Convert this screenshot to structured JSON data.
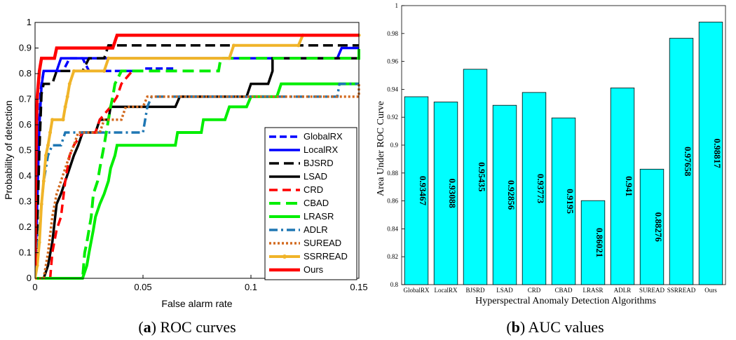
{
  "captions": {
    "a_letter": "a",
    "a_text": "ROC curves",
    "b_letter": "b",
    "b_text": "AUC values"
  },
  "chart_data": [
    {
      "type": "line",
      "xlabel": "False alarm rate",
      "ylabel": "Probability of detection",
      "xlim": [
        0,
        0.15
      ],
      "ylim": [
        0,
        1
      ],
      "xticks": [
        0,
        0.05,
        0.1,
        0.15
      ],
      "xtick_labels": [
        "0",
        "0.05",
        "0.1",
        "0.15"
      ],
      "yticks": [
        0,
        0.1,
        0.2,
        0.3,
        0.4,
        0.5,
        0.6,
        0.7,
        0.8,
        0.9,
        1
      ],
      "ytick_labels": [
        "0",
        "0.1",
        "0.2",
        "0.3",
        "0.4",
        "0.5",
        "0.6",
        "0.7",
        "0.8",
        "0.9",
        "1"
      ],
      "grid": false,
      "legend_position": "lower-right",
      "series": [
        {
          "name": "GlobalRX",
          "color": "#0000ff",
          "dash": "10,5",
          "width": 3.5,
          "points": [
            [
              0,
              0
            ],
            [
              0.0005,
              0.1
            ],
            [
              0.001,
              0.3
            ],
            [
              0.0015,
              0.5
            ],
            [
              0.002,
              0.62
            ],
            [
              0.0025,
              0.72
            ],
            [
              0.003,
              0.76
            ],
            [
              0.004,
              0.81
            ],
            [
              0.013,
              0.81
            ],
            [
              0.016,
              0.86
            ],
            [
              0.022,
              0.86
            ],
            [
              0.025,
              0.81
            ],
            [
              0.05,
              0.81
            ],
            [
              0.051,
              0.82
            ],
            [
              0.065,
              0.82
            ]
          ]
        },
        {
          "name": "LocalRX",
          "color": "#0000ff",
          "dash": "",
          "width": 3.5,
          "points": [
            [
              0,
              0
            ],
            [
              0.001,
              0.3
            ],
            [
              0.002,
              0.6
            ],
            [
              0.003,
              0.75
            ],
            [
              0.004,
              0.81
            ],
            [
              0.01,
              0.81
            ],
            [
              0.012,
              0.86
            ],
            [
              0.06,
              0.86
            ],
            [
              0.065,
              0.86
            ],
            [
              0.14,
              0.86
            ],
            [
              0.142,
              0.9
            ],
            [
              0.15,
              0.9
            ]
          ]
        },
        {
          "name": "BJSRD",
          "color": "#000000",
          "dash": "14,7",
          "width": 3.5,
          "points": [
            [
              0,
              0
            ],
            [
              0.001,
              0.2
            ],
            [
              0.002,
              0.5
            ],
            [
              0.003,
              0.72
            ],
            [
              0.004,
              0.76
            ],
            [
              0.008,
              0.76
            ],
            [
              0.01,
              0.81
            ],
            [
              0.022,
              0.81
            ],
            [
              0.025,
              0.86
            ],
            [
              0.032,
              0.86
            ],
            [
              0.034,
              0.91
            ],
            [
              0.15,
              0.91
            ]
          ]
        },
        {
          "name": "LSAD",
          "color": "#000000",
          "dash": "",
          "width": 3.5,
          "points": [
            [
              0.004,
              0
            ],
            [
              0.006,
              0.05
            ],
            [
              0.008,
              0.14
            ],
            [
              0.01,
              0.29
            ],
            [
              0.012,
              0.33
            ],
            [
              0.014,
              0.38
            ],
            [
              0.016,
              0.43
            ],
            [
              0.018,
              0.48
            ],
            [
              0.02,
              0.52
            ],
            [
              0.022,
              0.57
            ],
            [
              0.028,
              0.57
            ],
            [
              0.03,
              0.62
            ],
            [
              0.034,
              0.62
            ],
            [
              0.035,
              0.67
            ],
            [
              0.065,
              0.67
            ],
            [
              0.067,
              0.71
            ],
            [
              0.098,
              0.71
            ],
            [
              0.1,
              0.76
            ],
            [
              0.108,
              0.76
            ],
            [
              0.11,
              0.81
            ],
            [
              0.11,
              0.86
            ],
            [
              0.15,
              0.86
            ]
          ]
        },
        {
          "name": "CRD",
          "color": "#ff0000",
          "dash": "12,7",
          "width": 3.5,
          "points": [
            [
              0.007,
              0
            ],
            [
              0.008,
              0.1
            ],
            [
              0.01,
              0.19
            ],
            [
              0.012,
              0.24
            ],
            [
              0.014,
              0.38
            ],
            [
              0.016,
              0.48
            ],
            [
              0.018,
              0.52
            ],
            [
              0.022,
              0.57
            ],
            [
              0.028,
              0.57
            ],
            [
              0.03,
              0.62
            ],
            [
              0.035,
              0.67
            ],
            [
              0.038,
              0.71
            ],
            [
              0.04,
              0.76
            ],
            [
              0.045,
              0.81
            ],
            [
              0.048,
              0.81
            ]
          ]
        },
        {
          "name": "CBAD",
          "color": "#00ee00",
          "dash": "16,8",
          "width": 4,
          "points": [
            [
              0.016,
              0
            ],
            [
              0.022,
              0
            ],
            [
              0.023,
              0.1
            ],
            [
              0.024,
              0.14
            ],
            [
              0.025,
              0.19
            ],
            [
              0.026,
              0.24
            ],
            [
              0.027,
              0.33
            ],
            [
              0.029,
              0.38
            ],
            [
              0.03,
              0.43
            ],
            [
              0.032,
              0.52
            ],
            [
              0.033,
              0.57
            ],
            [
              0.034,
              0.62
            ],
            [
              0.035,
              0.67
            ],
            [
              0.036,
              0.71
            ],
            [
              0.037,
              0.76
            ],
            [
              0.04,
              0.81
            ],
            [
              0.085,
              0.81
            ],
            [
              0.086,
              0.86
            ],
            [
              0.15,
              0.86
            ],
            [
              0.15,
              0.91
            ]
          ]
        },
        {
          "name": "LRASR",
          "color": "#00ee00",
          "dash": "",
          "width": 4,
          "points": [
            [
              0.0,
              0
            ],
            [
              0.022,
              0
            ],
            [
              0.024,
              0.05
            ],
            [
              0.025,
              0.1
            ],
            [
              0.027,
              0.19
            ],
            [
              0.028,
              0.24
            ],
            [
              0.03,
              0.29
            ],
            [
              0.032,
              0.33
            ],
            [
              0.034,
              0.38
            ],
            [
              0.035,
              0.43
            ],
            [
              0.037,
              0.48
            ],
            [
              0.038,
              0.52
            ],
            [
              0.065,
              0.52
            ],
            [
              0.066,
              0.57
            ],
            [
              0.077,
              0.57
            ],
            [
              0.078,
              0.62
            ],
            [
              0.088,
              0.62
            ],
            [
              0.09,
              0.67
            ],
            [
              0.098,
              0.67
            ],
            [
              0.1,
              0.71
            ],
            [
              0.112,
              0.71
            ],
            [
              0.114,
              0.76
            ],
            [
              0.15,
              0.76
            ]
          ]
        },
        {
          "name": "ADLR",
          "color": "#1f77b4",
          "dash": "12,5,3,5",
          "width": 3.5,
          "points": [
            [
              0,
              0.05
            ],
            [
              0.001,
              0.1
            ],
            [
              0.002,
              0.19
            ],
            [
              0.003,
              0.29
            ],
            [
              0.004,
              0.38
            ],
            [
              0.005,
              0.43
            ],
            [
              0.006,
              0.48
            ],
            [
              0.008,
              0.52
            ],
            [
              0.012,
              0.52
            ],
            [
              0.014,
              0.57
            ],
            [
              0.05,
              0.57
            ],
            [
              0.052,
              0.67
            ],
            [
              0.054,
              0.71
            ],
            [
              0.14,
              0.71
            ],
            [
              0.141,
              0.76
            ],
            [
              0.15,
              0.76
            ]
          ]
        },
        {
          "name": "SUREAD",
          "color": "#d2691e",
          "dash": "3,3",
          "width": 3.5,
          "points": [
            [
              0,
              0
            ],
            [
              0.004,
              0
            ],
            [
              0.006,
              0.1
            ],
            [
              0.008,
              0.24
            ],
            [
              0.01,
              0.33
            ],
            [
              0.012,
              0.38
            ],
            [
              0.014,
              0.43
            ],
            [
              0.016,
              0.48
            ],
            [
              0.018,
              0.52
            ],
            [
              0.02,
              0.57
            ],
            [
              0.03,
              0.57
            ],
            [
              0.032,
              0.62
            ],
            [
              0.04,
              0.62
            ],
            [
              0.042,
              0.67
            ],
            [
              0.05,
              0.67
            ],
            [
              0.052,
              0.71
            ],
            [
              0.15,
              0.71
            ],
            [
              0.15,
              0.76
            ]
          ]
        },
        {
          "name": "SSRREAD",
          "color": "#f0b429",
          "dash": "",
          "width": 4,
          "marker": true,
          "points": [
            [
              0,
              0
            ],
            [
              0.001,
              0.05
            ],
            [
              0.002,
              0.14
            ],
            [
              0.003,
              0.29
            ],
            [
              0.004,
              0.38
            ],
            [
              0.005,
              0.48
            ],
            [
              0.006,
              0.52
            ],
            [
              0.007,
              0.57
            ],
            [
              0.008,
              0.62
            ],
            [
              0.013,
              0.62
            ],
            [
              0.014,
              0.67
            ],
            [
              0.015,
              0.71
            ],
            [
              0.016,
              0.76
            ],
            [
              0.018,
              0.81
            ],
            [
              0.032,
              0.81
            ],
            [
              0.034,
              0.86
            ],
            [
              0.09,
              0.86
            ],
            [
              0.092,
              0.91
            ],
            [
              0.122,
              0.91
            ],
            [
              0.124,
              0.95
            ],
            [
              0.15,
              0.95
            ]
          ]
        },
        {
          "name": "Ours",
          "color": "#ff0000",
          "dash": "",
          "width": 4.5,
          "points": [
            [
              0,
              0.05
            ],
            [
              0.0003,
              0.38
            ],
            [
              0.0007,
              0.62
            ],
            [
              0.001,
              0.71
            ],
            [
              0.002,
              0.81
            ],
            [
              0.003,
              0.86
            ],
            [
              0.009,
              0.86
            ],
            [
              0.01,
              0.9
            ],
            [
              0.036,
              0.9
            ],
            [
              0.038,
              0.95
            ],
            [
              0.15,
              0.95
            ]
          ]
        }
      ]
    },
    {
      "type": "bar",
      "xlabel": "Hyperspectral Anomaly Detection Algorithms",
      "ylabel": "Area Under ROC Curve",
      "ylim": [
        0.8,
        1
      ],
      "yticks": [
        0.8,
        0.82,
        0.84,
        0.86,
        0.88,
        0.9,
        0.92,
        0.94,
        0.96,
        0.98,
        1
      ],
      "ytick_labels": [
        "0.8",
        "0.82",
        "0.84",
        "0.86",
        "0.88",
        "0.9",
        "0.92",
        "0.94",
        "0.96",
        "0.98",
        "1"
      ],
      "bar_color": "#00ffff",
      "categories": [
        "GlobalRX",
        "LocalRX",
        "BJSRD",
        "LSAD",
        "CRD",
        "CBAD",
        "LRASR",
        "ADLR",
        "SUREAD",
        "SSRREAD",
        "Ours"
      ],
      "values": [
        0.93467,
        0.93088,
        0.95435,
        0.92856,
        0.93773,
        0.9195,
        0.86021,
        0.941,
        0.88276,
        0.97658,
        0.98817
      ],
      "value_labels": [
        "0.93467",
        "0.93088",
        "0.95435",
        "0.92856",
        "0.93773",
        "0.9195",
        "0.86021",
        "0.941",
        "0.88276",
        "0.97658",
        "0.98817"
      ]
    }
  ]
}
